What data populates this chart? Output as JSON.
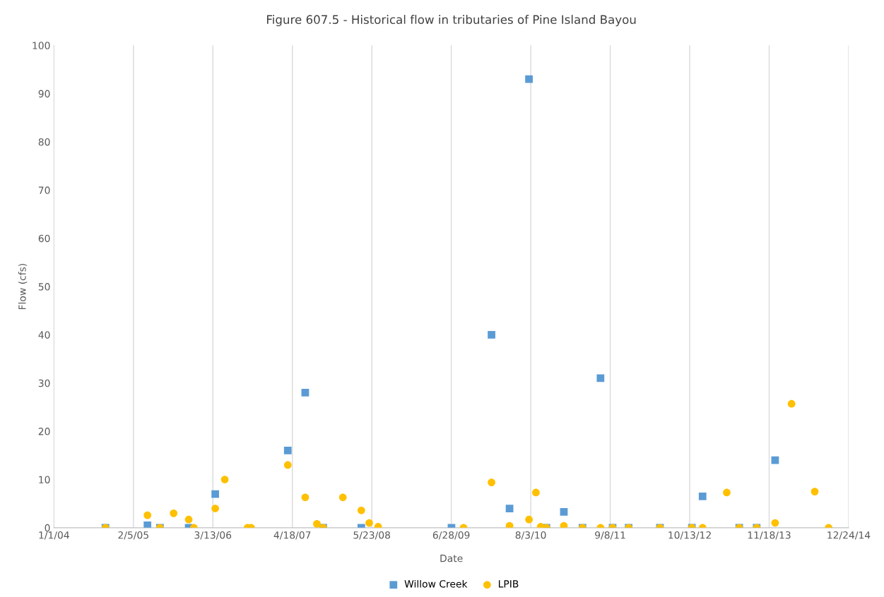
{
  "chart_data": {
    "type": "scatter",
    "title": "Figure 607.5 - Historical flow in tributaries of Pine Island Bayou",
    "xlabel": "Date",
    "ylabel": "Flow (cfs)",
    "series": [
      {
        "name": "Willow Creek",
        "color": "#5b9bd5",
        "marker": "square",
        "x": [
          "2004-09-17",
          "2005-04-17",
          "2005-06-19",
          "2005-11-11",
          "2006-03-25",
          "2007-03-26",
          "2007-06-22",
          "2007-09-21",
          "2008-03-31",
          "2009-06-29",
          "2010-01-17",
          "2010-04-18",
          "2010-07-25",
          "2010-10-21",
          "2011-01-17",
          "2011-04-21",
          "2011-07-21",
          "2011-09-20",
          "2011-12-10",
          "2012-05-16",
          "2012-10-24",
          "2012-12-17",
          "2013-06-20",
          "2013-09-16",
          "2013-12-18"
        ],
        "values": [
          0,
          0.5,
          0,
          0,
          7,
          16,
          28,
          0,
          0,
          0,
          40,
          4,
          93,
          0,
          3.3,
          0,
          31,
          0,
          0,
          0,
          0,
          6.5,
          0,
          0,
          14
        ]
      },
      {
        "name": "LPIB",
        "color": "#ffc000",
        "marker": "circle",
        "x": [
          "2004-09-17",
          "2005-04-17",
          "2005-06-19",
          "2005-08-27",
          "2005-11-11",
          "2005-12-07",
          "2006-03-25",
          "2006-05-12",
          "2006-09-04",
          "2006-09-22",
          "2007-03-26",
          "2007-06-22",
          "2007-08-20",
          "2007-09-21",
          "2007-12-29",
          "2008-03-31",
          "2008-05-10",
          "2008-06-24",
          "2009-08-29",
          "2010-01-17",
          "2010-04-18",
          "2010-07-25",
          "2010-08-29",
          "2010-09-22",
          "2010-10-21",
          "2011-01-17",
          "2011-04-21",
          "2011-07-21",
          "2011-09-20",
          "2011-12-10",
          "2012-05-16",
          "2012-10-24",
          "2012-12-17",
          "2013-04-18",
          "2013-06-20",
          "2013-09-16",
          "2013-12-18",
          "2014-03-11",
          "2014-07-06",
          "2014-09-14"
        ],
        "values": [
          0,
          2.6,
          0,
          3,
          1.7,
          0,
          4,
          10,
          0,
          0,
          13,
          6.3,
          0.8,
          0,
          6.3,
          3.6,
          1,
          0.2,
          0,
          9.4,
          0.4,
          1.7,
          7.3,
          0.2,
          0,
          0.4,
          0,
          0,
          0,
          0,
          0,
          0,
          0,
          7.3,
          0,
          0,
          1,
          25.7,
          7.5,
          0
        ]
      }
    ],
    "xlim": [
      "2004-01-01",
      "2014-12-24"
    ],
    "xticks": [
      {
        "value": "2004-01-01",
        "label": "1/1/04"
      },
      {
        "value": "2005-02-05",
        "label": "2/5/05"
      },
      {
        "value": "2006-03-13",
        "label": "3/13/06"
      },
      {
        "value": "2007-04-18",
        "label": "4/18/07"
      },
      {
        "value": "2008-05-23",
        "label": "5/23/08"
      },
      {
        "value": "2009-06-28",
        "label": "6/28/09"
      },
      {
        "value": "2010-08-03",
        "label": "8/3/10"
      },
      {
        "value": "2011-09-08",
        "label": "9/8/11"
      },
      {
        "value": "2012-10-13",
        "label": "10/13/12"
      },
      {
        "value": "2013-11-18",
        "label": "11/18/13"
      },
      {
        "value": "2014-12-24",
        "label": "12/24/14"
      }
    ],
    "ylim": [
      0,
      100
    ],
    "yticks": [
      0,
      10,
      20,
      30,
      40,
      50,
      60,
      70,
      80,
      90,
      100
    ],
    "grid": "x",
    "legend": "bottom"
  }
}
